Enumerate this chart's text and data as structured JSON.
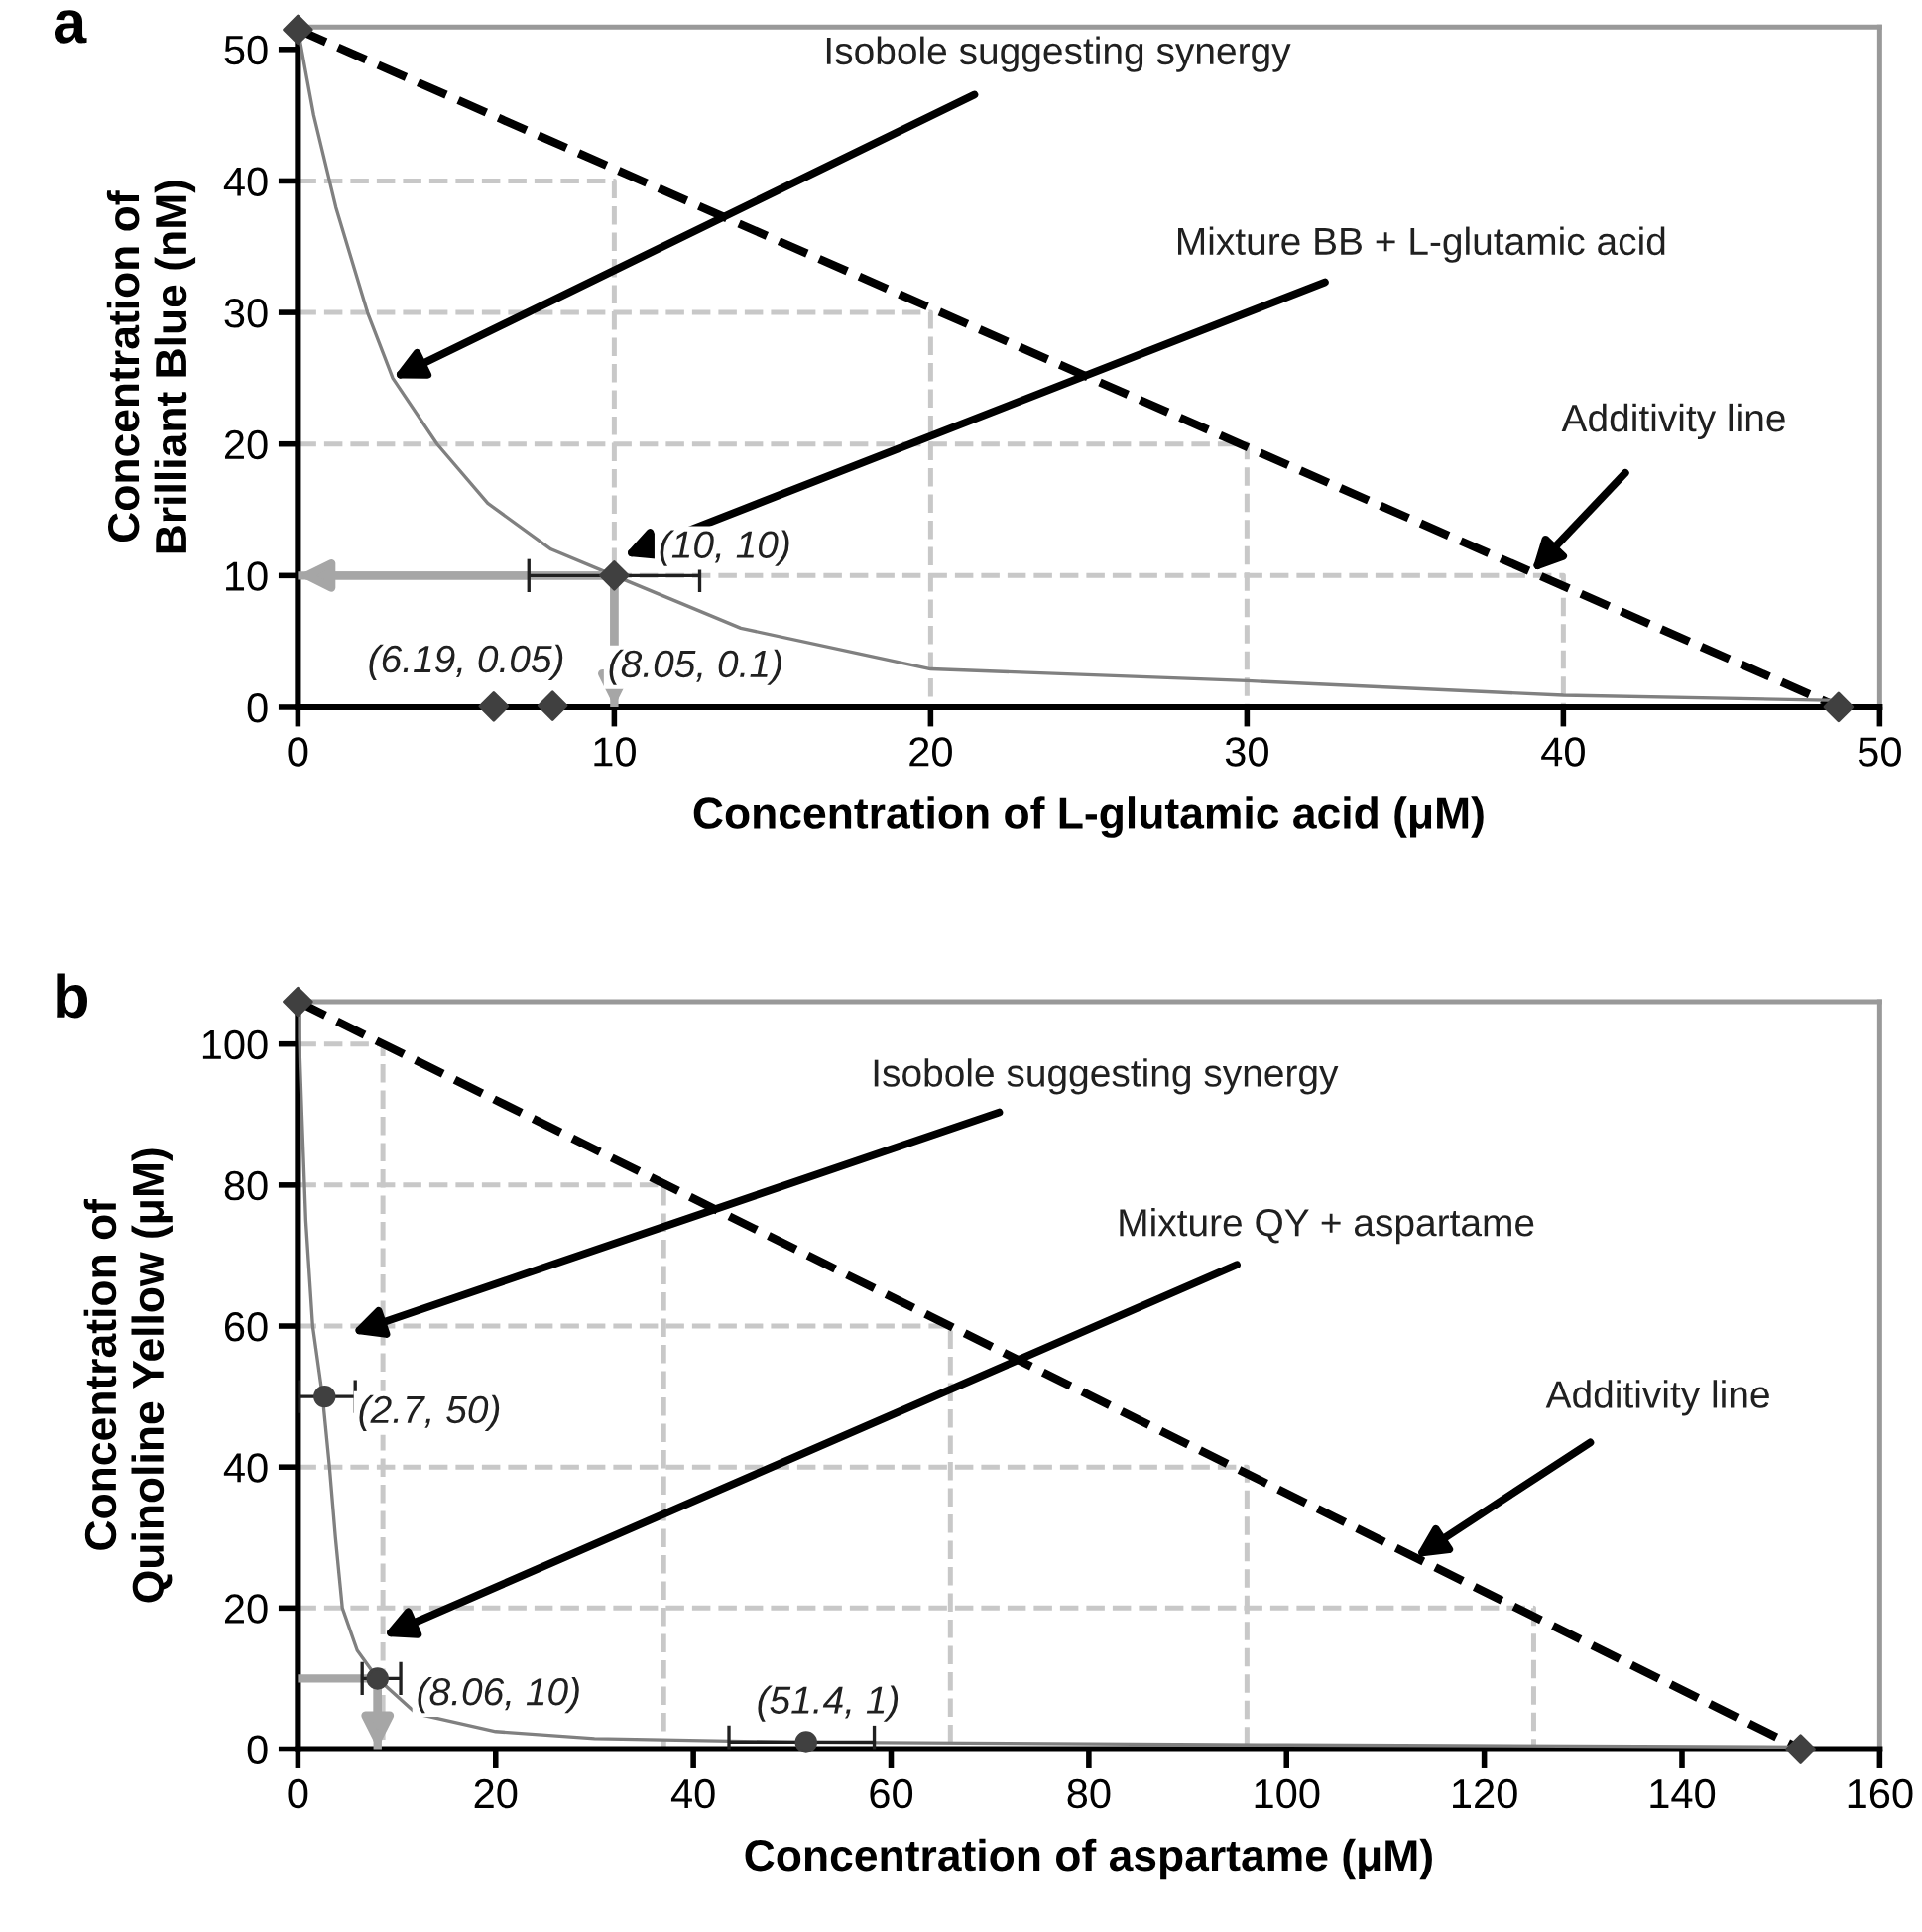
{
  "chart_data": [
    {
      "type": "line",
      "title": "a",
      "xlabel": "Concentration of L-glutamic acid (μM)",
      "ylabel": "Concentration of\nBrilliant Blue (nM)",
      "xlim": [
        0,
        50
      ],
      "ylim": [
        0,
        51.7
      ],
      "xticks": [
        0,
        10,
        20,
        30,
        40,
        50
      ],
      "yticks": [
        0,
        10,
        20,
        30,
        40,
        50
      ],
      "series": [
        {
          "type": "line",
          "color": "#c8c8c8",
          "line_style": "dashed",
          "x": [
            0,
            10,
            10
          ],
          "values": [
            40,
            40,
            0
          ]
        },
        {
          "type": "line",
          "color": "#c8c8c8",
          "line_style": "dashed",
          "x": [
            0,
            20,
            20
          ],
          "values": [
            30,
            30,
            0
          ]
        },
        {
          "type": "line",
          "color": "#c8c8c8",
          "line_style": "dashed",
          "x": [
            0,
            30,
            30
          ],
          "values": [
            20,
            20,
            0
          ]
        },
        {
          "type": "line",
          "color": "#c8c8c8",
          "line_style": "dashed",
          "x": [
            0,
            40,
            40
          ],
          "values": [
            10,
            10,
            0
          ]
        },
        {
          "type": "line",
          "color": "#000000",
          "line_style": "dashed",
          "x": [
            0,
            48.7
          ],
          "values": [
            51.5,
            0
          ]
        },
        {
          "type": "line",
          "color": "#808080",
          "line_style": "solid",
          "x": [
            0,
            0.5,
            1.2,
            2.2,
            3,
            4.4,
            6,
            8,
            10,
            14,
            20,
            30,
            40,
            48.7
          ],
          "values": [
            51.5,
            45,
            38,
            30,
            25,
            20,
            15.5,
            12,
            10,
            6,
            2.9,
            2,
            0.9,
            0.5
          ]
        },
        {
          "type": "line",
          "color": "#a6a6a6",
          "line_style": "solid",
          "x": [
            10,
            0
          ],
          "values": [
            10,
            10
          ]
        },
        {
          "type": "line",
          "color": "#a6a6a6",
          "line_style": "solid",
          "x": [
            10,
            10
          ],
          "values": [
            10,
            0
          ]
        },
        {
          "type": "scatter",
          "color": "#404040",
          "marker": "diamond",
          "x": [
            0,
            6.19,
            8.05,
            10,
            48.7
          ],
          "values": [
            51.5,
            0.05,
            0.1,
            10,
            0
          ],
          "xerrors": [
            null,
            null,
            null,
            [
              7.3,
              12.7
            ],
            null
          ],
          "value_labels": [
            null,
            "(6.19, 0.05)",
            "(8.05, 0.1)",
            "(10, 10)",
            null
          ]
        }
      ],
      "annotations": [
        {
          "text": "Isobole suggesting synergy",
          "x": 3,
          "y": 25
        },
        {
          "text": "Mixture BB + L-glutamic acid",
          "x": 10.3,
          "y": 11.5
        },
        {
          "text": "Additivity line",
          "x": 39,
          "y": 10.3
        }
      ]
    },
    {
      "type": "line",
      "title": "b",
      "xlabel": "Concentration of aspartame (μM)",
      "ylabel": "Concentration of\nQuinoline Yellow (μM)",
      "xlim": [
        0,
        160
      ],
      "ylim": [
        0,
        106
      ],
      "xticks": [
        0,
        20,
        40,
        60,
        80,
        100,
        120,
        140,
        160
      ],
      "yticks": [
        0,
        20,
        40,
        60,
        80,
        100
      ],
      "series": [
        {
          "type": "line",
          "color": "#c8c8c8",
          "line_style": "dashed",
          "x": [
            0,
            8.6,
            8.6
          ],
          "values": [
            100,
            100,
            0
          ]
        },
        {
          "type": "line",
          "color": "#c8c8c8",
          "line_style": "dashed",
          "x": [
            0,
            37,
            37
          ],
          "values": [
            80,
            80,
            0
          ]
        },
        {
          "type": "line",
          "color": "#c8c8c8",
          "line_style": "dashed",
          "x": [
            0,
            66,
            66
          ],
          "values": [
            60,
            60,
            0
          ]
        },
        {
          "type": "line",
          "color": "#c8c8c8",
          "line_style": "dashed",
          "x": [
            0,
            96,
            96
          ],
          "values": [
            40,
            40,
            0
          ]
        },
        {
          "type": "line",
          "color": "#c8c8c8",
          "line_style": "dashed",
          "x": [
            0,
            125,
            125
          ],
          "values": [
            20,
            20,
            0
          ]
        },
        {
          "type": "line",
          "color": "#000000",
          "line_style": "dashed",
          "x": [
            0,
            152
          ],
          "values": [
            106,
            0
          ]
        },
        {
          "type": "line",
          "color": "#808080",
          "line_style": "solid",
          "x": [
            0,
            0.4,
            0.8,
            1.5,
            2.5,
            3.2,
            3.8,
            4.5,
            6,
            8.06,
            12,
            20,
            30,
            50,
            100,
            152
          ],
          "values": [
            106,
            90,
            75,
            60,
            50,
            40,
            30,
            20,
            14,
            10,
            5,
            2.5,
            1.5,
            1,
            0.6,
            0.3
          ]
        },
        {
          "type": "line",
          "color": "#a6a6a6",
          "line_style": "solid",
          "x": [
            0,
            8.06
          ],
          "values": [
            10,
            10
          ]
        },
        {
          "type": "line",
          "color": "#a6a6a6",
          "line_style": "solid",
          "x": [
            8.06,
            8.06
          ],
          "values": [
            10,
            0
          ]
        },
        {
          "type": "scatter",
          "color": "#404040",
          "marker": "circle",
          "x": [
            2.7,
            8.06,
            51.4
          ],
          "values": [
            50,
            10,
            1
          ],
          "xerrors": [
            [
              0,
              5.8
            ],
            [
              6.5,
              10.4
            ],
            [
              43.6,
              58.3
            ]
          ],
          "value_labels": [
            "(2.7, 50)",
            "(8.06, 10)",
            "(51.4, 1)"
          ]
        },
        {
          "type": "scatter",
          "color": "#404040",
          "marker": "diamond",
          "x": [
            0,
            152
          ],
          "values": [
            106,
            0
          ]
        }
      ],
      "annotations": [
        {
          "text": "Isobole suggesting synergy",
          "x": 5.4,
          "y": 59
        },
        {
          "text": "Mixture QY + aspartame",
          "x": 8.6,
          "y": 16
        },
        {
          "text": "Additivity line",
          "x": 113,
          "y": 27.2
        }
      ]
    }
  ]
}
